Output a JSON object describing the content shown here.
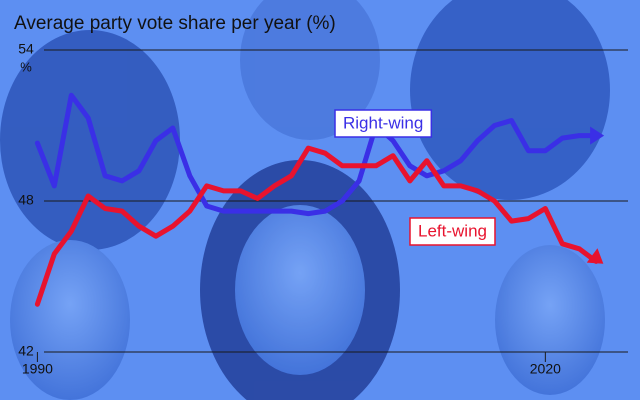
{
  "chart_data": {
    "type": "line",
    "title": "Average party vote share per year (%)",
    "y_unit": "%",
    "x": [
      1990,
      1991,
      1992,
      1993,
      1994,
      1995,
      1996,
      1997,
      1998,
      1999,
      2000,
      2001,
      2002,
      2003,
      2004,
      2005,
      2006,
      2007,
      2008,
      2009,
      2010,
      2011,
      2012,
      2013,
      2014,
      2015,
      2016,
      2017,
      2018,
      2019,
      2020,
      2021,
      2022,
      2023
    ],
    "series": [
      {
        "name": "Right-wing",
        "color": "#3a2fe6",
        "values": [
          50.3,
          48.6,
          52.2,
          51.3,
          49.0,
          48.8,
          49.2,
          50.4,
          50.9,
          49.0,
          47.8,
          47.6,
          47.6,
          47.6,
          47.6,
          47.6,
          47.5,
          47.6,
          48.0,
          48.8,
          51.0,
          50.4,
          49.4,
          49.0,
          49.2,
          49.6,
          50.4,
          51.0,
          51.2,
          50.0,
          50.0,
          50.5,
          50.6,
          50.6
        ]
      },
      {
        "name": "Left-wing",
        "color": "#e8132e",
        "values": [
          43.9,
          45.9,
          46.8,
          48.2,
          47.7,
          47.6,
          47.0,
          46.6,
          47.0,
          47.6,
          48.6,
          48.4,
          48.4,
          48.1,
          48.6,
          49.0,
          50.1,
          49.9,
          49.4,
          49.4,
          49.4,
          49.8,
          48.8,
          49.6,
          48.6,
          48.6,
          48.4,
          48.0,
          47.2,
          47.3,
          47.7,
          46.3,
          46.1,
          45.6
        ]
      }
    ],
    "xlim": [
      1988.5,
      2025
    ],
    "xticks": [
      1990,
      2020
    ],
    "ylim": [
      42,
      54
    ],
    "yticks": [
      42,
      48,
      54
    ],
    "grid": true
  }
}
